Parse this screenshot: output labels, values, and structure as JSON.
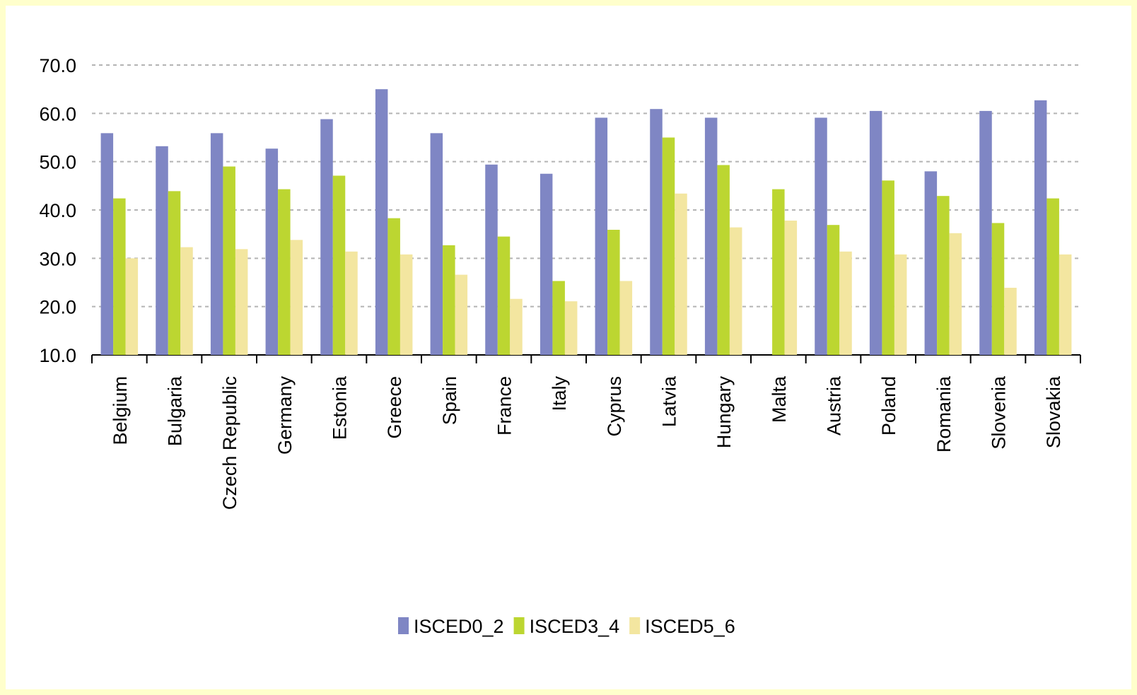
{
  "chart_data": {
    "type": "bar",
    "categories": [
      "Belgium",
      "Bulgaria",
      "Czech Republic",
      "Germany",
      "Estonia",
      "Greece",
      "Spain",
      "France",
      "Italy",
      "Cyprus",
      "Latvia",
      "Hungary",
      "Malta",
      "Austria",
      "Poland",
      "Romania",
      "Slovenia",
      "Slovakia"
    ],
    "series": [
      {
        "name": "ISCED0_2",
        "color": "#7f86c4",
        "values": [
          55.9,
          53.2,
          55.9,
          52.7,
          58.8,
          65.0,
          55.9,
          49.4,
          47.5,
          59.1,
          60.9,
          59.1,
          null,
          59.1,
          60.5,
          48.0,
          60.5,
          62.7
        ]
      },
      {
        "name": "ISCED3_4",
        "color": "#bcd631",
        "values": [
          42.4,
          43.9,
          49.0,
          44.3,
          47.1,
          38.3,
          32.7,
          34.5,
          25.3,
          35.9,
          55.0,
          49.3,
          44.3,
          36.9,
          46.1,
          42.9,
          37.3,
          42.4
        ]
      },
      {
        "name": "ISCED5_6",
        "color": "#f3e6a0",
        "values": [
          30.0,
          32.3,
          31.9,
          33.8,
          31.4,
          30.8,
          26.6,
          21.6,
          21.1,
          25.3,
          43.4,
          36.4,
          37.8,
          31.4,
          30.8,
          35.2,
          23.9,
          30.8
        ]
      }
    ],
    "ylim": [
      10,
      70
    ],
    "yticks": [
      {
        "value": 10,
        "label": "10.0"
      },
      {
        "value": 20,
        "label": "20.0"
      },
      {
        "value": 30,
        "label": "30.0"
      },
      {
        "value": 40,
        "label": "40.0"
      },
      {
        "value": 50,
        "label": "50.0"
      },
      {
        "value": 60,
        "label": "60.0"
      },
      {
        "value": 70,
        "label": "70.0"
      }
    ],
    "grid": true,
    "legend": "bottom"
  }
}
